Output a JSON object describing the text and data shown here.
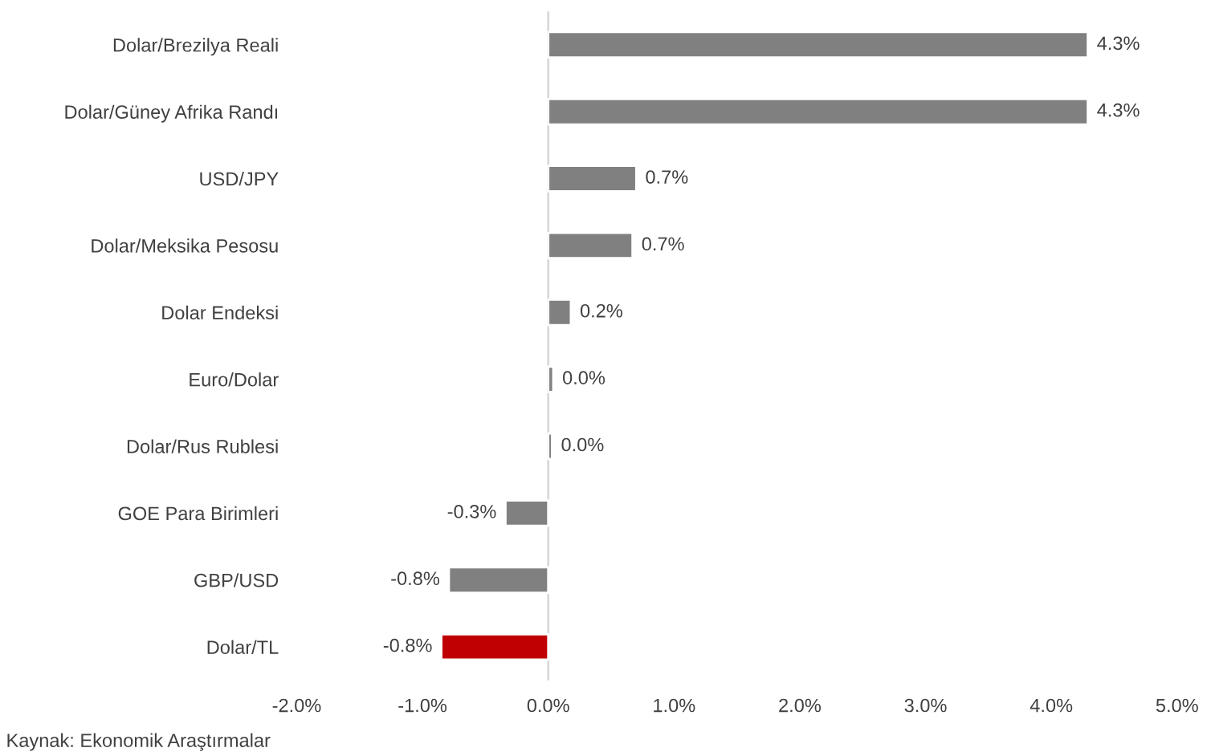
{
  "chart_data": {
    "type": "bar",
    "orientation": "horizontal",
    "categories": [
      "Dolar/Brezilya Reali",
      "Dolar/Güney Afrika Randı",
      "USD/JPY",
      "Dolar/Meksika Pesosu",
      "Dolar Endeksi",
      "Euro/Dolar",
      "Dolar/Rus Rublesi",
      "GOE Para Birimleri",
      "GBP/USD",
      "Dolar/TL"
    ],
    "values": [
      4.29,
      4.29,
      0.7,
      0.67,
      0.18,
      0.04,
      0.03,
      -0.34,
      -0.79,
      -0.85
    ],
    "value_labels": [
      "4.3%",
      "4.3%",
      "0.7%",
      "0.7%",
      "0.2%",
      "0.0%",
      "0.0%",
      "-0.3%",
      "-0.8%",
      "-0.8%"
    ],
    "colors": [
      "#808080",
      "#808080",
      "#808080",
      "#808080",
      "#808080",
      "#808080",
      "#808080",
      "#808080",
      "#808080",
      "#c00000"
    ],
    "xlim": [
      -2,
      5
    ],
    "xticks": [
      {
        "value": -2,
        "label": "-2.0%"
      },
      {
        "value": -1,
        "label": "-1.0%"
      },
      {
        "value": 0,
        "label": "0.0%"
      },
      {
        "value": 1,
        "label": "1.0%"
      },
      {
        "value": 2,
        "label": "2.0%"
      },
      {
        "value": 3,
        "label": "3.0%"
      },
      {
        "value": 4,
        "label": "4.0%"
      },
      {
        "value": 5,
        "label": "5.0%"
      }
    ],
    "ref_lines": [
      {
        "axis": "x",
        "value": 0,
        "color": "#d9d9d9"
      }
    ],
    "grid": false,
    "legend": false,
    "annotations": [
      "Kaynak: Ekonomik Araştırmalar"
    ]
  }
}
